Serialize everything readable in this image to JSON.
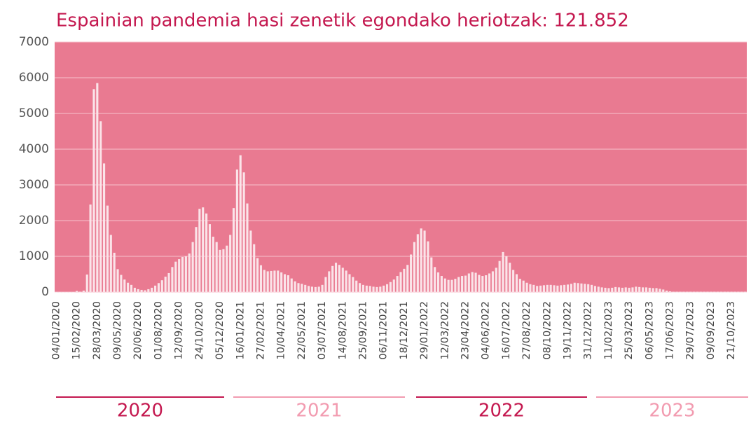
{
  "chart_data": {
    "type": "bar",
    "title": "Espainian pandemia hasi zenetik egondako heriotzak: 121.852",
    "color": "#fbe4e9",
    "background": "#e97a91",
    "grid": true,
    "ylim": [
      0,
      7000
    ],
    "yticks": [
      0,
      1000,
      2000,
      3000,
      4000,
      5000,
      6000,
      7000
    ],
    "categories": [
      "04/01/2020",
      null,
      null,
      null,
      null,
      null,
      "15/02/2020",
      null,
      null,
      null,
      null,
      null,
      "28/03/2020",
      null,
      null,
      null,
      null,
      null,
      "09/05/2020",
      null,
      null,
      null,
      null,
      null,
      "20/06/2020",
      null,
      null,
      null,
      null,
      null,
      "01/08/2020",
      null,
      null,
      null,
      null,
      null,
      "12/09/2020",
      null,
      null,
      null,
      null,
      null,
      "24/10/2020",
      null,
      null,
      null,
      null,
      null,
      "05/12/2020",
      null,
      null,
      null,
      null,
      null,
      "16/01/2021",
      null,
      null,
      null,
      null,
      null,
      "27/02/2021",
      null,
      null,
      null,
      null,
      null,
      "10/04/2021",
      null,
      null,
      null,
      null,
      null,
      "22/05/2021",
      null,
      null,
      null,
      null,
      null,
      "03/07/2021",
      null,
      null,
      null,
      null,
      null,
      "14/08/2021",
      null,
      null,
      null,
      null,
      null,
      "25/09/2021",
      null,
      null,
      null,
      null,
      null,
      "06/11/2021",
      null,
      null,
      null,
      null,
      null,
      "18/12/2021",
      null,
      null,
      null,
      null,
      null,
      "29/01/2022",
      null,
      null,
      null,
      null,
      null,
      "12/03/2022",
      null,
      null,
      null,
      null,
      null,
      "23/04/2022",
      null,
      null,
      null,
      null,
      null,
      "04/06/2022",
      null,
      null,
      null,
      null,
      null,
      "16/07/2022",
      null,
      null,
      null,
      null,
      null,
      "27/08/2022",
      null,
      null,
      null,
      null,
      null,
      "08/10/2022",
      null,
      null,
      null,
      null,
      null,
      "19/11/2022",
      null,
      null,
      null,
      null,
      null,
      "31/12/2022",
      null,
      null,
      null,
      null,
      null,
      "11/02/2023",
      null,
      null,
      null,
      null,
      null,
      "25/03/2023",
      null,
      null,
      null,
      null,
      null,
      "06/05/2023",
      null,
      null,
      null,
      null,
      null,
      "17/06/2023",
      null,
      null,
      null,
      null,
      null,
      "29/07/2023",
      null,
      null,
      null,
      null,
      null,
      "09/09/2023",
      null,
      null,
      null,
      null,
      null,
      "21/10/2023",
      null,
      null,
      null,
      null
    ],
    "values": [
      0,
      0,
      0,
      0,
      0,
      0,
      30,
      10,
      40,
      490,
      2450,
      5680,
      5850,
      4780,
      3600,
      2420,
      1600,
      1100,
      640,
      480,
      350,
      260,
      200,
      120,
      80,
      60,
      50,
      80,
      120,
      180,
      250,
      330,
      430,
      530,
      700,
      850,
      920,
      980,
      1000,
      1080,
      1400,
      1820,
      2330,
      2370,
      2200,
      1900,
      1550,
      1400,
      1180,
      1200,
      1300,
      1600,
      2350,
      3430,
      3830,
      3350,
      2480,
      1720,
      1340,
      950,
      750,
      620,
      580,
      590,
      600,
      600,
      550,
      500,
      470,
      380,
      300,
      250,
      230,
      200,
      170,
      150,
      140,
      150,
      200,
      420,
      580,
      730,
      820,
      760,
      680,
      600,
      500,
      420,
      320,
      250,
      200,
      180,
      170,
      150,
      140,
      150,
      180,
      220,
      280,
      350,
      450,
      560,
      650,
      760,
      1050,
      1400,
      1620,
      1780,
      1720,
      1420,
      970,
      700,
      550,
      450,
      380,
      340,
      340,
      370,
      420,
      450,
      460,
      520,
      560,
      540,
      480,
      450,
      470,
      520,
      580,
      680,
      870,
      1120,
      1000,
      820,
      620,
      500,
      370,
      320,
      260,
      220,
      200,
      170,
      180,
      190,
      200,
      200,
      190,
      180,
      190,
      200,
      210,
      230,
      260,
      250,
      240,
      230,
      220,
      200,
      170,
      150,
      130,
      120,
      110,
      120,
      140,
      130,
      120,
      130,
      120,
      130,
      150,
      140,
      130,
      130,
      120,
      110,
      110,
      90,
      70,
      40,
      20,
      10,
      10,
      10,
      10,
      10,
      10,
      10,
      10,
      10,
      10,
      10,
      10,
      10,
      10,
      10,
      10,
      10,
      10,
      10,
      10,
      10,
      10
    ],
    "year_bands": [
      {
        "label": "2020",
        "color": "#c4184f"
      },
      {
        "label": "2021",
        "color": "#f29bb0"
      },
      {
        "label": "2022",
        "color": "#c4184f"
      },
      {
        "label": "2023",
        "color": "#f29bb0"
      }
    ]
  }
}
